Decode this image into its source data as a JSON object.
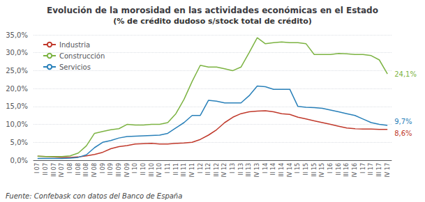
{
  "chart_data": {
    "type": "line",
    "title": "Evolución de la morosidad en las actividades económicas en el Estado",
    "subtitle": "(% de crédito dudoso s/stock total de crédito)",
    "footnote": "Fuente: Confebask con datos del Banco de España",
    "categories": [
      "I 07",
      "II 07",
      "III 07",
      "IV 07",
      "I 08",
      "II 08",
      "III 08",
      "IV 08",
      "I 09",
      "II 09",
      "III 09",
      "IV 09",
      "I 10",
      "II 10",
      "III 10",
      "IV 10",
      "I 11",
      "II 11",
      "III 11",
      "IV 11",
      "I 12",
      "II 12",
      "III 12",
      "IV 12",
      "I 13",
      "II 13",
      "III 13",
      "IV 13",
      "I 14",
      "II 14",
      "III 14",
      "IV 14",
      "I 15",
      "II 15",
      "III 15",
      "IV 15",
      "I 16",
      "II 16",
      "III 16",
      "IV 16",
      "I 17",
      "II 17",
      "III 17",
      "IV 17"
    ],
    "series": [
      {
        "name": "Industria",
        "color": "#c0392b",
        "values": [
          1.1,
          1.0,
          0.9,
          0.8,
          0.8,
          0.9,
          1.2,
          1.6,
          2.2,
          3.2,
          3.8,
          4.1,
          4.5,
          4.6,
          4.7,
          4.5,
          4.5,
          4.7,
          4.8,
          5.0,
          5.8,
          7.0,
          8.5,
          10.5,
          12.0,
          13.0,
          13.5,
          13.7,
          13.8,
          13.5,
          13.0,
          12.8,
          12.0,
          11.5,
          11.0,
          10.5,
          10.0,
          9.5,
          9.0,
          8.8,
          8.7,
          8.7,
          8.6,
          8.6
        ]
      },
      {
        "name": "Construcción",
        "color": "#7cb342",
        "values": [
          1.1,
          1.0,
          1.0,
          1.0,
          1.2,
          2.0,
          4.0,
          7.5,
          8.0,
          8.5,
          8.8,
          10.0,
          9.8,
          9.8,
          10.0,
          10.0,
          10.5,
          13.0,
          17.0,
          22.0,
          26.5,
          26.0,
          26.0,
          25.5,
          25.0,
          26.0,
          30.0,
          34.2,
          32.5,
          32.8,
          33.0,
          32.8,
          32.8,
          32.5,
          29.5,
          29.5,
          29.5,
          29.8,
          29.7,
          29.5,
          29.5,
          29.2,
          28.0,
          24.1
        ]
      },
      {
        "name": "Servicios",
        "color": "#2980b9",
        "values": [
          0.5,
          0.5,
          0.5,
          0.5,
          0.6,
          0.8,
          1.5,
          3.5,
          5.0,
          5.5,
          6.2,
          6.6,
          6.7,
          6.8,
          6.9,
          7.0,
          7.5,
          9.0,
          10.5,
          12.5,
          12.5,
          16.7,
          16.5,
          16.0,
          16.0,
          16.0,
          18.0,
          20.7,
          20.5,
          19.8,
          19.8,
          19.8,
          15.0,
          14.8,
          14.7,
          14.5,
          14.0,
          13.5,
          13.0,
          12.5,
          11.5,
          10.5,
          10.0,
          9.7
        ]
      }
    ],
    "annotations": [
      {
        "text": "24,1%",
        "series": "Construcción",
        "x": "IV 17",
        "y": 24.1
      },
      {
        "text": "9,7%",
        "series": "Servicios",
        "x": "IV 17",
        "y": 9.7
      },
      {
        "text": "8,6%",
        "series": "Industria",
        "x": "IV 17",
        "y": 8.6
      }
    ],
    "ylim": [
      0,
      35
    ],
    "yticks": [
      {
        "value": 0,
        "label": "0,0%"
      },
      {
        "value": 5,
        "label": "5,0%"
      },
      {
        "value": 10,
        "label": "10,0%"
      },
      {
        "value": 15,
        "label": "15,0%"
      },
      {
        "value": 20,
        "label": "20,0%"
      },
      {
        "value": 25,
        "label": "25,0%"
      },
      {
        "value": 30,
        "label": "30,0%"
      },
      {
        "value": 35,
        "label": "35,0%"
      }
    ],
    "grid": true,
    "legend": "upper left"
  }
}
